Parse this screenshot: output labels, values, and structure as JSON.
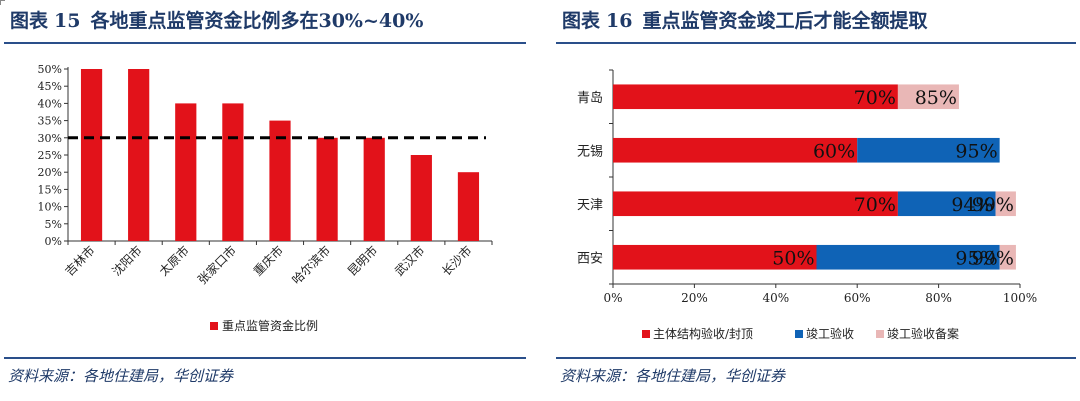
{
  "left_panel": {
    "title_prefix": "图表",
    "title_number": "15",
    "title_text": "各地重点监管资金比例多在30%~40%",
    "source": "资料来源：各地住建局，华创证券"
  },
  "right_panel": {
    "title_prefix": "图表",
    "title_number": "16",
    "title_text": "重点监管资金竣工后才能全额提取",
    "source": "资料来源：各地住建局，华创证券"
  },
  "colors": {
    "red": "#e2121a",
    "blue": "#0f63b6",
    "pink": "#e9b7b6",
    "rule": "#2a4f8a",
    "title": "#1f3a68"
  },
  "chart_data": [
    {
      "type": "bar",
      "categories": [
        "吉林市",
        "沈阳市",
        "太原市",
        "张家口市",
        "重庆市",
        "哈尔滨市",
        "昆明市",
        "武汉市",
        "长沙市"
      ],
      "series": [
        {
          "name": "重点监管资金比例",
          "values": [
            50,
            50,
            40,
            40,
            35,
            30,
            30,
            25,
            20
          ]
        }
      ],
      "unit": "%",
      "ylim": [
        0,
        50
      ],
      "yticks": [
        0,
        5,
        10,
        15,
        20,
        25,
        30,
        35,
        40,
        45,
        50
      ],
      "ytick_labels": [
        "0%",
        "5%",
        "10%",
        "15%",
        "20%",
        "25%",
        "30%",
        "35%",
        "40%",
        "45%",
        "50%"
      ],
      "reference_line": 30,
      "legend_position": "bottom",
      "grid": false
    },
    {
      "type": "bar",
      "orientation": "horizontal",
      "stacked": true,
      "categories": [
        "青岛",
        "无锡",
        "天津",
        "西安"
      ],
      "series": [
        {
          "name": "主体结构验收/封顶",
          "values": [
            70,
            60,
            70,
            50
          ]
        },
        {
          "name": "竣工验收",
          "values": [
            0,
            35,
            24,
            45
          ]
        },
        {
          "name": "竣工验收备案",
          "values": [
            15,
            0,
            5,
            4
          ]
        }
      ],
      "data_labels": [
        [
          "70%",
          "",
          "85%"
        ],
        [
          "60%",
          "95%",
          ""
        ],
        [
          "70%",
          "94%",
          "99%"
        ],
        [
          "50%",
          "95%",
          "99%"
        ]
      ],
      "unit": "%",
      "xlim": [
        0,
        100
      ],
      "xticks": [
        0,
        20,
        40,
        60,
        80,
        100
      ],
      "xtick_labels": [
        "0%",
        "20%",
        "40%",
        "60%",
        "80%",
        "100%"
      ],
      "legend_position": "bottom",
      "grid": false
    }
  ]
}
